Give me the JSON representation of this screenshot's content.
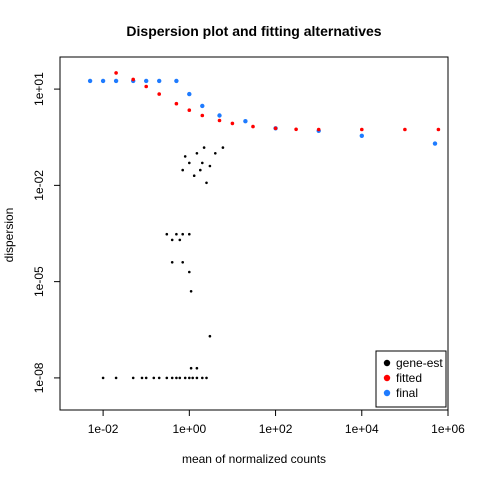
{
  "chart_data": {
    "type": "scatter",
    "title": "Dispersion plot and fitting alternatives",
    "xlabel": "mean of normalized counts",
    "ylabel": "dispersion",
    "x_scale": "log10",
    "y_scale": "log10",
    "xlim": [
      0.001,
      1000000
    ],
    "ylim": [
      1e-09,
      100
    ],
    "x_ticks": [
      {
        "value": 0.01,
        "label": "1e-02"
      },
      {
        "value": 1,
        "label": "1e+00"
      },
      {
        "value": 100,
        "label": "1e+02"
      },
      {
        "value": 10000,
        "label": "1e+04"
      },
      {
        "value": 1000000,
        "label": "1e+06"
      }
    ],
    "y_ticks": [
      {
        "value": 1e-08,
        "label": "1e-08"
      },
      {
        "value": 1e-05,
        "label": "1e-05"
      },
      {
        "value": 0.01,
        "label": "1e-02"
      },
      {
        "value": 10,
        "label": "1e+01"
      }
    ],
    "grid": false,
    "legend_position": "bottom-right",
    "series": [
      {
        "name": "gene-est",
        "color": "#000000",
        "points": [
          [
            0.01,
            1e-08
          ],
          [
            0.02,
            1e-08
          ],
          [
            0.05,
            1e-08
          ],
          [
            0.08,
            1e-08
          ],
          [
            0.1,
            1e-08
          ],
          [
            0.15,
            1e-08
          ],
          [
            0.2,
            1e-08
          ],
          [
            0.3,
            1e-08
          ],
          [
            0.4,
            1e-08
          ],
          [
            0.5,
            1e-08
          ],
          [
            0.6,
            1e-08
          ],
          [
            0.8,
            1e-08
          ],
          [
            1.0,
            1e-08
          ],
          [
            1.2,
            1e-08
          ],
          [
            1.5,
            1e-08
          ],
          [
            2.0,
            1e-08
          ],
          [
            2.5,
            1e-08
          ],
          [
            1.1,
            2e-08
          ],
          [
            1.5,
            2e-08
          ],
          [
            3.0,
            2e-07
          ],
          [
            0.3,
            0.0003
          ],
          [
            0.4,
            0.0002
          ],
          [
            0.5,
            0.0003
          ],
          [
            0.7,
            0.0003
          ],
          [
            0.6,
            0.0002
          ],
          [
            1.0,
            0.0003
          ],
          [
            0.4,
            4e-05
          ],
          [
            0.7,
            4e-05
          ],
          [
            1.0,
            2e-05
          ],
          [
            1.1,
            5e-06
          ],
          [
            1.0,
            0.05
          ],
          [
            1.3,
            0.02
          ],
          [
            1.8,
            0.03
          ],
          [
            2.5,
            0.012
          ],
          [
            0.7,
            0.03
          ],
          [
            2.0,
            0.05
          ],
          [
            3.0,
            0.04
          ],
          [
            1.5,
            0.1
          ],
          [
            0.8,
            0.08
          ],
          [
            4.0,
            0.1
          ],
          [
            6.0,
            0.15
          ],
          [
            2.2,
            0.15
          ]
        ]
      },
      {
        "name": "fitted",
        "color": "#ff0000",
        "points": [
          [
            0.02,
            32
          ],
          [
            0.05,
            20
          ],
          [
            0.1,
            12
          ],
          [
            0.2,
            7
          ],
          [
            0.5,
            3.5
          ],
          [
            1,
            2.2
          ],
          [
            2,
            1.5
          ],
          [
            5,
            1.05
          ],
          [
            10,
            0.85
          ],
          [
            30,
            0.68
          ],
          [
            100,
            0.6
          ],
          [
            300,
            0.56
          ],
          [
            1000,
            0.55
          ],
          [
            10000,
            0.55
          ],
          [
            100000,
            0.55
          ],
          [
            600000,
            0.55
          ]
        ]
      },
      {
        "name": "final",
        "color": "#1e7bff",
        "points": [
          [
            0.005,
            18
          ],
          [
            0.01,
            18
          ],
          [
            0.02,
            18
          ],
          [
            0.05,
            18
          ],
          [
            0.1,
            18
          ],
          [
            0.2,
            18
          ],
          [
            0.5,
            18
          ],
          [
            1,
            7
          ],
          [
            2,
            3
          ],
          [
            5,
            1.5
          ],
          [
            20,
            1
          ],
          [
            100,
            0.6
          ],
          [
            1000,
            0.5
          ],
          [
            10000,
            0.35
          ],
          [
            500000,
            0.2
          ]
        ]
      }
    ]
  }
}
